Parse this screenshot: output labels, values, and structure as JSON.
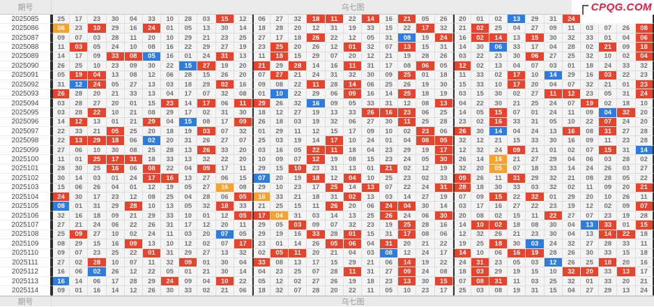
{
  "header": {
    "period_label": "期号",
    "chart_label": "乌七图"
  },
  "footer": {
    "period_label": "期号",
    "chart_label": "乌七图"
  },
  "logo": {
    "text": "CPQG.COM",
    "color": "#e51b3d"
  },
  "colors": {
    "red": "#e8432d",
    "blue": "#2e7ce0",
    "orange": "#f7a12f",
    "cell_bg": "#f4f4f4",
    "cell_text": "#707070",
    "separator": "#2d2d2d"
  },
  "table": {
    "rows": [
      {
        "period": "2025085",
        "cells": [
          "25",
          "17",
          "23",
          "30",
          "04",
          "33",
          "10",
          "28",
          "03",
          "15r",
          "12",
          "06",
          "27",
          "32",
          "18r",
          "11r",
          "22",
          "14r",
          "16",
          "21r",
          "05",
          "26",
          "20",
          "01",
          "02",
          "13b",
          "29",
          "31",
          "24r",
          "h",
          "h",
          "h",
          "h"
        ]
      },
      {
        "period": "2025086",
        "cells": [
          "06o",
          "23",
          "10r",
          "29",
          "16",
          "24r",
          "01",
          "05",
          "13",
          "30",
          "14",
          "18",
          "28",
          "20",
          "12",
          "31",
          "19",
          "33",
          "15",
          "22",
          "17r",
          "32",
          "21",
          "02r",
          "25",
          "04",
          "27",
          "09",
          "11",
          "03",
          "07",
          "26",
          "08r"
        ]
      },
      {
        "period": "2025087",
        "cells": [
          "09",
          "07",
          "03",
          "28",
          "11",
          "20",
          "10",
          "29",
          "21",
          "23",
          "25",
          "27",
          "17",
          "18",
          "26r",
          "22",
          "12",
          "05",
          "31",
          "08b",
          "19",
          "24r",
          "16",
          "02r",
          "14r",
          "13",
          "15r",
          "30",
          "32",
          "33",
          "01",
          "04",
          "06r"
        ]
      },
      {
        "period": "2025088",
        "cells": [
          "11",
          "03r",
          "05",
          "24",
          "10",
          "08",
          "16",
          "22",
          "29",
          "27",
          "19",
          "23",
          "25r",
          "20",
          "26",
          "12",
          "01r",
          "32",
          "07",
          "13r",
          "15",
          "31",
          "14",
          "30",
          "06b",
          "33",
          "17",
          "04",
          "28",
          "02",
          "21r",
          "09",
          "18r"
        ]
      },
      {
        "period": "2025089",
        "cells": [
          "14",
          "17",
          "09",
          "33r",
          "08r",
          "05b",
          "16",
          "01",
          "24",
          "31r",
          "13",
          "11",
          "18r",
          "15",
          "29",
          "07",
          "20",
          "12",
          "21",
          "19",
          "28",
          "26",
          "03",
          "22",
          "23",
          "30",
          "06r",
          "27",
          "25",
          "32",
          "10",
          "02",
          "04r"
        ]
      },
      {
        "period": "2025090",
        "cells": [
          "26",
          "25",
          "10",
          "23",
          "09",
          "30",
          "22",
          "15b",
          "27r",
          "19",
          "20",
          "21r",
          "29",
          "28r",
          "14",
          "16",
          "11r",
          "31",
          "17",
          "08",
          "06r",
          "05",
          "12r",
          "02",
          "13",
          "04",
          "07",
          "03",
          "01",
          "18",
          "24",
          "33",
          "32"
        ]
      },
      {
        "period": "2025091",
        "cells": [
          "05",
          "19r",
          "04r",
          "13",
          "08",
          "12",
          "06",
          "28",
          "15",
          "26",
          "20",
          "07",
          "27r",
          "21",
          "24",
          "31",
          "32",
          "30",
          "09",
          "25r",
          "01",
          "18",
          "11",
          "33",
          "02",
          "17r",
          "10",
          "14b",
          "29",
          "16",
          "03r",
          "22",
          "23"
        ]
      },
      {
        "period": "2025092",
        "cells": [
          "31",
          "12b",
          "24r",
          "05",
          "27",
          "13",
          "03",
          "18",
          "29",
          "02r",
          "16",
          "09",
          "08",
          "22",
          "11r",
          "28",
          "14r",
          "06",
          "25",
          "26",
          "19",
          "30",
          "15",
          "33",
          "10",
          "17r",
          "20",
          "04",
          "07",
          "32",
          "21",
          "01",
          "23r"
        ]
      },
      {
        "period": "2025093",
        "cells": [
          "26r",
          "28",
          "20",
          "21",
          "33",
          "13",
          "04",
          "17",
          "07",
          "32",
          "08",
          "01",
          "10b",
          "22",
          "29",
          "06",
          "09r",
          "16",
          "14",
          "25r",
          "18",
          "19",
          "03",
          "15",
          "30",
          "02",
          "27",
          "11r",
          "12r",
          "23",
          "05",
          "31",
          "24r"
        ]
      },
      {
        "period": "2025094",
        "cells": [
          "03",
          "28",
          "27",
          "20",
          "01",
          "15",
          "23r",
          "14",
          "17r",
          "06",
          "11r",
          "29r",
          "26",
          "32",
          "16b",
          "09",
          "05",
          "33",
          "31",
          "12",
          "08",
          "13r",
          "04",
          "22",
          "30",
          "21",
          "25",
          "24",
          "07",
          "19r",
          "02",
          "18",
          "10"
        ]
      },
      {
        "period": "2025095",
        "cells": [
          "03",
          "28",
          "22r",
          "10",
          "21",
          "08",
          "29",
          "17",
          "02",
          "31",
          "30",
          "18",
          "12",
          "27",
          "19",
          "13",
          "33",
          "26r",
          "16r",
          "23r",
          "06",
          "25",
          "14",
          "05",
          "15r",
          "07",
          "01",
          "24",
          "11",
          "09",
          "04b",
          "32r",
          "20"
        ]
      },
      {
        "period": "2025096",
        "cells": [
          "14",
          "12r",
          "13",
          "01",
          "21",
          "29r",
          "04",
          "15b",
          "08",
          "17",
          "09r",
          "26",
          "18",
          "03",
          "19",
          "32",
          "06",
          "27",
          "30",
          "11r",
          "25",
          "28",
          "23",
          "02",
          "16r",
          "33",
          "31",
          "05",
          "10",
          "22",
          "07r",
          "24",
          "20"
        ]
      },
      {
        "period": "2025097",
        "cells": [
          "22",
          "33",
          "21",
          "05r",
          "25",
          "20",
          "18",
          "19",
          "03r",
          "07",
          "32",
          "01",
          "29",
          "11",
          "12",
          "15",
          "17",
          "09",
          "10",
          "02",
          "23r",
          "06",
          "26r",
          "30",
          "14b",
          "04",
          "24",
          "13",
          "16r",
          "08",
          "31r",
          "27",
          "28"
        ]
      },
      {
        "period": "2025098",
        "cells": [
          "22",
          "13r",
          "29r",
          "18r",
          "06",
          "02b",
          "20",
          "31",
          "26",
          "27",
          "07",
          "25",
          "03",
          "19",
          "14",
          "17r",
          "10",
          "24",
          "01",
          "04",
          "08r",
          "05r",
          "32",
          "12",
          "21",
          "15",
          "33",
          "30",
          "16",
          "09",
          "11",
          "23",
          "28"
        ]
      },
      {
        "period": "2025099",
        "cells": [
          "27",
          "06",
          "10",
          "30",
          "08",
          "25",
          "28",
          "13",
          "26r",
          "33",
          "20",
          "03",
          "16",
          "05",
          "22r",
          "11r",
          "18",
          "04",
          "23",
          "29",
          "19",
          "17r",
          "12",
          "32",
          "24",
          "09r",
          "21",
          "01",
          "02",
          "07",
          "15r",
          "31",
          "14b"
        ]
      },
      {
        "period": "2025100",
        "cells": [
          "11",
          "01",
          "25r",
          "17r",
          "31r",
          "18",
          "33",
          "13",
          "32",
          "22",
          "20",
          "10",
          "09",
          "07",
          "12r",
          "19",
          "08",
          "15",
          "23",
          "24",
          "05",
          "30r",
          "26",
          "14",
          "16o",
          "21",
          "27",
          "29",
          "04",
          "06",
          "03",
          "28",
          "02"
        ]
      },
      {
        "period": "2025101",
        "cells": [
          "28",
          "30",
          "25",
          "16r",
          "06",
          "08r",
          "22",
          "04",
          "09r",
          "17",
          "11",
          "29",
          "15",
          "10r",
          "23",
          "31",
          "13",
          "01",
          "21r",
          "02",
          "12",
          "19",
          "32",
          "20",
          "05o",
          "07",
          "18",
          "33",
          "14",
          "24",
          "26",
          "03",
          "27"
        ]
      },
      {
        "period": "2025102",
        "cells": [
          "30",
          "14",
          "03",
          "01",
          "24",
          "17r",
          "16r",
          "13",
          "27",
          "06",
          "15",
          "07b",
          "20",
          "19",
          "18r",
          "12",
          "04r",
          "10",
          "25",
          "23",
          "02",
          "33",
          "09r",
          "26",
          "11",
          "31r",
          "29",
          "32",
          "21",
          "08",
          "28",
          "05",
          "22"
        ]
      },
      {
        "period": "2025103",
        "cells": [
          "15",
          "06",
          "26",
          "04",
          "01",
          "12",
          "19",
          "05",
          "27",
          "16o",
          "08",
          "29",
          "10",
          "23",
          "17",
          "25r",
          "14",
          "13r",
          "07",
          "22",
          "24",
          "31r",
          "28r",
          "18",
          "30",
          "33",
          "03",
          "32",
          "02",
          "11",
          "09",
          "20",
          "21r"
        ]
      },
      {
        "period": "2025104",
        "cells": [
          "24r",
          "30",
          "17",
          "23",
          "12",
          "08",
          "25",
          "04",
          "28",
          "06",
          "05r",
          "16o",
          "33",
          "21",
          "18",
          "31",
          "02r",
          "13",
          "03",
          "14",
          "27",
          "19",
          "07",
          "09",
          "15r",
          "22",
          "32r",
          "01",
          "29",
          "20",
          "10",
          "26",
          "11"
        ]
      },
      {
        "period": "2025105",
        "cells": [
          "08b",
          "01",
          "31",
          "29",
          "28r",
          "10",
          "13",
          "05",
          "32",
          "18r",
          "33",
          "21",
          "25",
          "15",
          "11",
          "26r",
          "20",
          "06",
          "24r",
          "04r",
          "30",
          "14",
          "03",
          "17",
          "16",
          "27",
          "22",
          "23",
          "19",
          "12",
          "02",
          "09",
          "07r"
        ]
      },
      {
        "period": "2025106",
        "cells": [
          "32",
          "16",
          "18",
          "09",
          "21",
          "29",
          "33",
          "10",
          "01",
          "12",
          "05r",
          "17r",
          "04o",
          "31",
          "03",
          "14",
          "13",
          "25",
          "26r",
          "24",
          "06",
          "30r",
          "20",
          "08",
          "02",
          "15",
          "11",
          "22r",
          "27",
          "07",
          "23",
          "19",
          "28"
        ]
      },
      {
        "period": "2025107",
        "cells": [
          "27",
          "21",
          "24",
          "06",
          "22",
          "26",
          "31",
          "17",
          "12",
          "20",
          "11",
          "29",
          "05",
          "03r",
          "09",
          "07",
          "32",
          "23",
          "19",
          "25r",
          "28",
          "16",
          "14",
          "10r",
          "02r",
          "18",
          "08",
          "30",
          "04",
          "13b",
          "33r",
          "01",
          "15r"
        ]
      },
      {
        "period": "2025108",
        "cells": [
          "25",
          "09r",
          "27",
          "10",
          "02",
          "24",
          "11",
          "03",
          "20",
          "07b",
          "05",
          "29",
          "19",
          "16",
          "33r",
          "28",
          "01r",
          "15",
          "31",
          "17r",
          "08",
          "06",
          "12",
          "32",
          "26",
          "21",
          "23",
          "30",
          "04",
          "13",
          "14r",
          "22r",
          "18"
        ]
      },
      {
        "period": "2025109",
        "cells": [
          "08",
          "29",
          "15",
          "16",
          "09r",
          "13",
          "10",
          "12",
          "02",
          "07",
          "17r",
          "23",
          "01",
          "14",
          "26",
          "05r",
          "06r",
          "04",
          "31r",
          "20",
          "21",
          "22",
          "19",
          "25",
          "18r",
          "30",
          "03b",
          "24",
          "32",
          "27",
          "28",
          "33",
          "11"
        ]
      },
      {
        "period": "2025110",
        "cells": [
          "09",
          "07",
          "23",
          "25",
          "22",
          "01r",
          "31",
          "29",
          "27",
          "13",
          "32",
          "02",
          "05r",
          "11r",
          "20",
          "21",
          "04",
          "03",
          "08b",
          "12",
          "24",
          "17",
          "14r",
          "10",
          "06",
          "16r",
          "19r",
          "28",
          "26",
          "30",
          "33",
          "15",
          "18"
        ]
      },
      {
        "period": "2025111",
        "cells": [
          "27",
          "02",
          "28r",
          "10",
          "07",
          "11",
          "32",
          "09r",
          "01",
          "30",
          "04",
          "33r",
          "08",
          "13",
          "17",
          "15",
          "29",
          "21",
          "06",
          "14r",
          "19",
          "22",
          "24",
          "31r",
          "23",
          "05",
          "03",
          "12b",
          "26",
          "25",
          "18r",
          "20",
          "16"
        ]
      },
      {
        "period": "2025112",
        "cells": [
          "16",
          "06",
          "02b",
          "26",
          "12",
          "22",
          "05",
          "01",
          "21",
          "30",
          "14",
          "04",
          "23",
          "25",
          "07",
          "28",
          "11r",
          "31",
          "27",
          "09r",
          "24",
          "08",
          "18",
          "03r",
          "29",
          "19",
          "15",
          "10",
          "32r",
          "20r",
          "33",
          "13r",
          "17"
        ]
      },
      {
        "period": "2025113",
        "cells": [
          "16b",
          "14",
          "06",
          "17",
          "28",
          "29",
          "24r",
          "09",
          "04",
          "10r",
          "22",
          "05",
          "12",
          "02",
          "27",
          "26",
          "19",
          "18",
          "23",
          "13r",
          "30",
          "15r",
          "07",
          "08r",
          "31r",
          "11",
          "03",
          "25",
          "32",
          "01",
          "33",
          "20",
          "21"
        ]
      },
      {
        "period": "2025114",
        "cells": [
          "09",
          "01",
          "16",
          "14",
          "12",
          "26",
          "30",
          "33",
          "02",
          "21",
          "06",
          "18",
          "32",
          "07",
          "28",
          "20",
          "22",
          "11",
          "05",
          "10",
          "23",
          "17",
          "25",
          "03",
          "08",
          "19",
          "31",
          "15",
          "04",
          "27",
          "29",
          "13",
          "24"
        ]
      }
    ]
  }
}
